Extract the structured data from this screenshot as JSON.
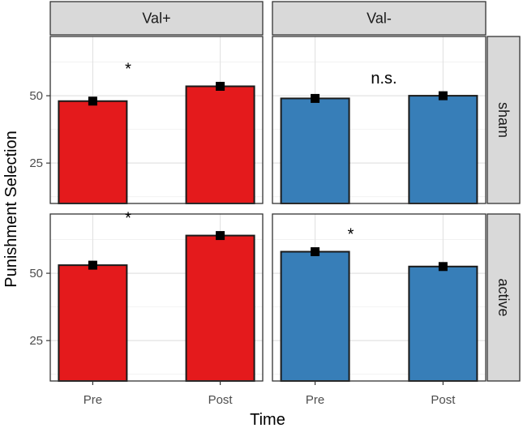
{
  "chart_data": {
    "type": "bar",
    "facet_columns": [
      "Val+",
      "Val-"
    ],
    "facet_rows": [
      "sham",
      "active"
    ],
    "categories": [
      "Pre",
      "Post"
    ],
    "xlabel": "Time",
    "ylabel": "Punishment Selection",
    "ylim": [
      10,
      72
    ],
    "yticks": [
      25,
      50
    ],
    "y_minor_gridlines": [
      12.5,
      37.5,
      62.5
    ],
    "grid": true,
    "colors": {
      "Val+": "#e41a1c",
      "Val-": "#377eb8"
    },
    "panels": [
      {
        "row": "sham",
        "column": "Val+",
        "values": [
          48,
          53.5
        ],
        "se": [
          1.2,
          1.2
        ],
        "annotation": "*"
      },
      {
        "row": "sham",
        "column": "Val-",
        "values": [
          49,
          50
        ],
        "se": [
          1.2,
          1.2
        ],
        "annotation": "n.s."
      },
      {
        "row": "active",
        "column": "Val+",
        "values": [
          53,
          64
        ],
        "se": [
          1.2,
          1.2
        ],
        "annotation": "*"
      },
      {
        "row": "active",
        "column": "Val-",
        "values": [
          58,
          52.5
        ],
        "se": [
          1.2,
          1.2
        ],
        "annotation": "*"
      }
    ]
  }
}
